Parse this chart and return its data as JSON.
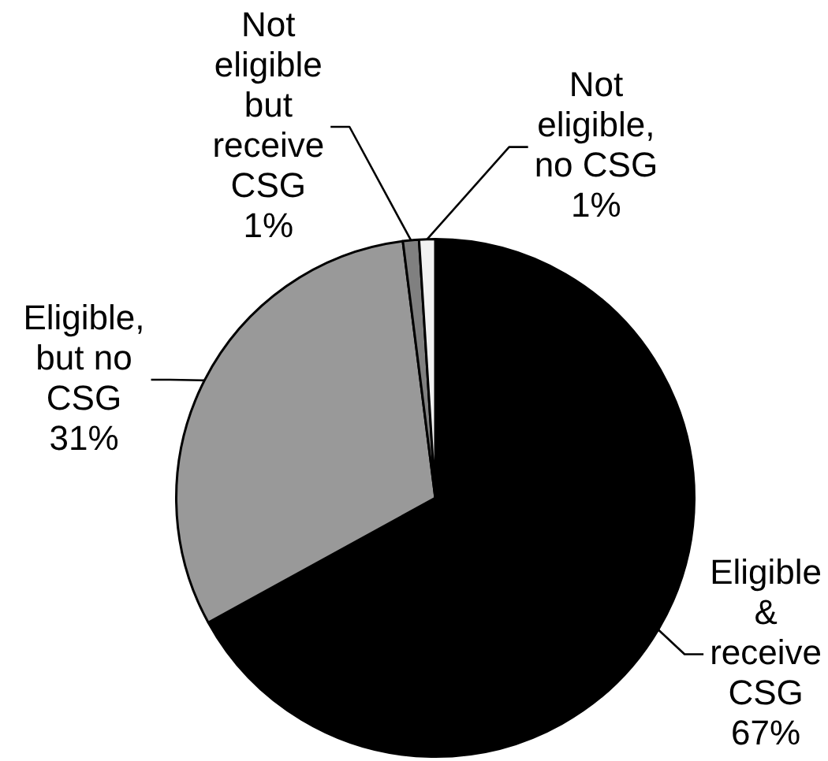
{
  "chart_data": {
    "type": "pie",
    "categories": [
      "Eligible & receive CSG",
      "Eligible, but no CSG",
      "Not eligible but receive CSG",
      "Not eligible, no CSG"
    ],
    "values": [
      67,
      31,
      1,
      1
    ],
    "value_labels": [
      "67%",
      "31%",
      "1%",
      "1%"
    ],
    "colors": [
      "#000000",
      "#999999",
      "#808080",
      "#f2f2f2"
    ],
    "legend": false
  }
}
